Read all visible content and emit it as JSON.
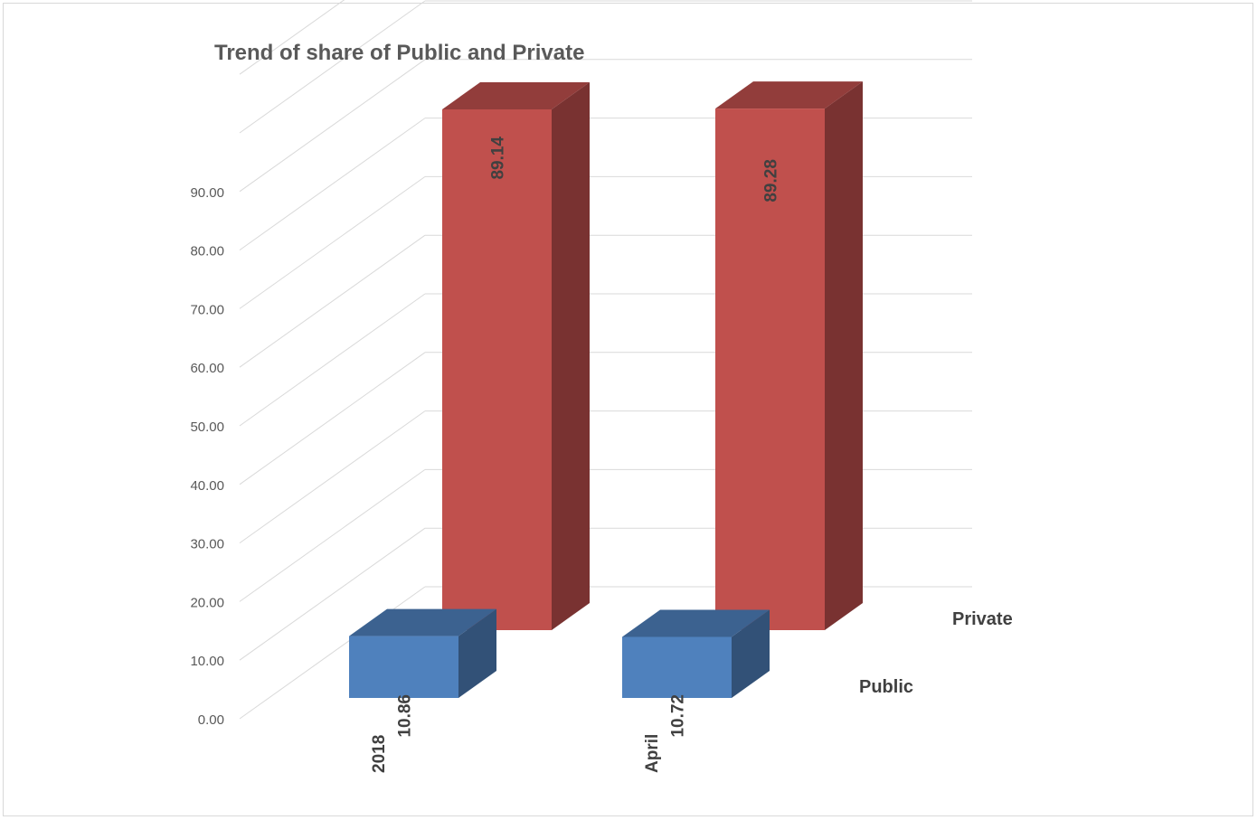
{
  "chart_data": {
    "type": "bar",
    "title": "Trend of  share of Public and Private",
    "categories": [
      "2018",
      "April"
    ],
    "series": [
      {
        "name": "Public",
        "values": [
          10.86,
          10.72
        ],
        "color": "#4f81bd"
      },
      {
        "name": "Private",
        "values": [
          89.14,
          89.28
        ],
        "color": "#c0504d"
      }
    ],
    "ylim": [
      0,
      90
    ],
    "ytick_labels": [
      "0.00",
      "10.00",
      "20.00",
      "30.00",
      "40.00",
      "50.00",
      "60.00",
      "70.00",
      "80.00",
      "90.00"
    ],
    "data_labels": [
      [
        "10.86",
        "10.72"
      ],
      [
        "89.14",
        "89.28"
      ]
    ],
    "grid": true,
    "style": "3d-column"
  }
}
